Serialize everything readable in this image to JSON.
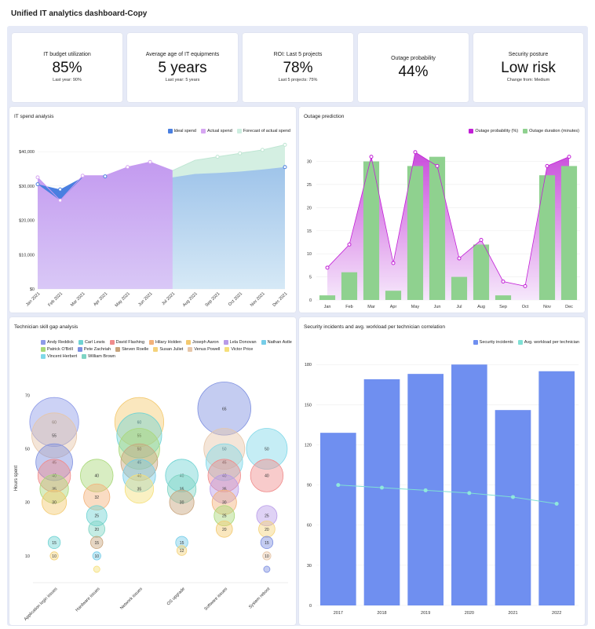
{
  "page_title": "Unified IT analytics dashboard-Copy",
  "kpis": [
    {
      "title": "IT budget utilization",
      "value": "85%",
      "sub": "Last year: 90%"
    },
    {
      "title": "Average age of IT equipments",
      "value": "5 years",
      "sub": "Last year: 5 years"
    },
    {
      "title": "ROI: Last 5 projects",
      "value": "78%",
      "sub": "Last 5 projects: 75%"
    },
    {
      "title": "Outage probability",
      "value": "44%",
      "sub": ""
    },
    {
      "title": "Security posture",
      "value": "Low risk",
      "sub": "Change from: Medium"
    }
  ],
  "spend": {
    "title": "IT spend analysis",
    "legend": [
      {
        "label": "Ideal spend",
        "color": "#4a7fe0"
      },
      {
        "label": "Actual spend",
        "color": "#d6a6f2"
      },
      {
        "label": "Forecast of actual spend",
        "color": "#cdeee0"
      }
    ]
  },
  "outage": {
    "title": "Outage prediction",
    "legend": [
      {
        "label": "Outage probability (%)",
        "color": "#c21fd6"
      },
      {
        "label": "Outage duration (minutes)",
        "color": "#8fd18f"
      }
    ]
  },
  "skills": {
    "title": "Technician skill gap analysis",
    "legend": [
      {
        "label": "Andy Reddick",
        "color": "#8e9be8"
      },
      {
        "label": "Carl Lewis",
        "color": "#6fd3d3"
      },
      {
        "label": "David Flashing",
        "color": "#f08c8c"
      },
      {
        "label": "Hilary Holden",
        "color": "#f3b27a"
      },
      {
        "label": "Joseph Aaron",
        "color": "#f3c96f"
      },
      {
        "label": "Lela Donovan",
        "color": "#b89be8"
      },
      {
        "label": "Nathan Astle",
        "color": "#76cde8"
      },
      {
        "label": "Patrick O'Brill",
        "color": "#a8d878"
      },
      {
        "label": "Pete Zachriah",
        "color": "#7d8fe0"
      },
      {
        "label": "Steven Roelle",
        "color": "#c8a47c"
      },
      {
        "label": "Susan Juliet",
        "color": "#f4d27a"
      },
      {
        "label": "Venus Powell",
        "color": "#e6c6a8"
      },
      {
        "label": "Victor Price",
        "color": "#f5df7a"
      },
      {
        "label": "Vincent Herbert",
        "color": "#7fd8e8"
      },
      {
        "label": "William Brown",
        "color": "#7ed4c4"
      }
    ]
  },
  "security": {
    "title": "Security incidents and avg. workload per technician correlation",
    "legend": [
      {
        "label": "Security incidents",
        "color": "#6f8ff0"
      },
      {
        "label": "Avg. workload per technician",
        "color": "#7fe0d4"
      }
    ]
  },
  "chart_data": [
    {
      "type": "area",
      "title": "IT spend analysis",
      "categories": [
        "Jan 2021",
        "Feb 2021",
        "Mar 2021",
        "Apr 2021",
        "May 2021",
        "Jun 2021",
        "Jul 2021",
        "Aug 2021",
        "Sep 2021",
        "Oct 2021",
        "Nov 2021",
        "Dec 2021"
      ],
      "y_ticks": [
        "$0",
        "$10,000",
        "$20,000",
        "$30,000",
        "$40,000"
      ],
      "ylim": [
        0,
        43000
      ],
      "series": [
        {
          "name": "Ideal spend",
          "values": [
            30500,
            29000,
            32500,
            32800,
            33300,
            33500,
            32500,
            33500,
            33800,
            34200,
            34800,
            35500
          ]
        },
        {
          "name": "Actual spend",
          "values": [
            32500,
            25800,
            33000,
            33000,
            35500,
            37000,
            34500,
            null,
            null,
            null,
            null,
            null
          ]
        },
        {
          "name": "Forecast of actual spend",
          "values": [
            null,
            null,
            null,
            null,
            null,
            null,
            34500,
            37500,
            38500,
            39500,
            40500,
            42000
          ]
        }
      ]
    },
    {
      "type": "bar",
      "title": "Outage prediction",
      "categories": [
        "Jan",
        "Feb",
        "Mar",
        "Apr",
        "May",
        "Jun",
        "Jul",
        "Aug",
        "Sep",
        "Oct",
        "Nov",
        "Dec"
      ],
      "y_ticks": [
        "0",
        "5",
        "10",
        "15",
        "20",
        "25",
        "30"
      ],
      "ylim": [
        0,
        34
      ],
      "series": [
        {
          "name": "Outage probability (%)",
          "values": [
            7,
            12,
            31,
            8,
            32,
            29,
            9,
            13,
            4,
            3,
            29,
            31
          ]
        },
        {
          "name": "Outage duration (minutes)",
          "values": [
            1,
            6,
            30,
            2,
            29,
            31,
            5,
            12,
            1,
            0,
            27,
            29
          ]
        }
      ]
    },
    {
      "type": "scatter",
      "title": "Technician skill gap analysis",
      "ylabel": "Hours spent",
      "categories": [
        "Application login issues",
        "Hardware issues",
        "Network issues",
        "OS upgrade",
        "Software issues",
        "System reboot"
      ],
      "y_ticks": [
        "10",
        "30",
        "50",
        "70"
      ],
      "ylim": [
        0,
        78
      ],
      "bubbles": [
        {
          "cat": 0,
          "value": 60,
          "color": "#8e9be8"
        },
        {
          "cat": 0,
          "value": 55,
          "color": "#e6c6a8"
        },
        {
          "cat": 0,
          "value": 45,
          "color": "#7d8fe0"
        },
        {
          "cat": 0,
          "value": 40,
          "color": "#f08c8c"
        },
        {
          "cat": 0,
          "value": 35,
          "color": "#a8d878"
        },
        {
          "cat": 0,
          "value": 30,
          "color": "#f3c96f"
        },
        {
          "cat": 0,
          "value": 15,
          "color": "#6fd3d3"
        },
        {
          "cat": 0,
          "value": 10,
          "color": "#f4d27a"
        },
        {
          "cat": 1,
          "value": 40,
          "color": "#a8d878"
        },
        {
          "cat": 1,
          "value": 32,
          "color": "#f3b27a"
        },
        {
          "cat": 1,
          "value": 25,
          "color": "#6fd3d3"
        },
        {
          "cat": 1,
          "value": 20,
          "color": "#7ed4c4"
        },
        {
          "cat": 1,
          "value": 15,
          "color": "#c8a47c"
        },
        {
          "cat": 1,
          "value": 10,
          "color": "#76cde8"
        },
        {
          "cat": 1,
          "value": 5,
          "color": "#f5df7a"
        },
        {
          "cat": 2,
          "value": 60,
          "color": "#f3c96f"
        },
        {
          "cat": 2,
          "value": 55,
          "color": "#6fd3d3"
        },
        {
          "cat": 2,
          "value": 50,
          "color": "#a8d878"
        },
        {
          "cat": 2,
          "value": 45,
          "color": "#c8a47c"
        },
        {
          "cat": 2,
          "value": 40,
          "color": "#76cde8"
        },
        {
          "cat": 2,
          "value": 35,
          "color": "#f5df7a"
        },
        {
          "cat": 3,
          "value": 40,
          "color": "#6fd3d3"
        },
        {
          "cat": 3,
          "value": 35,
          "color": "#7ed4c4"
        },
        {
          "cat": 3,
          "value": 30,
          "color": "#c8a47c"
        },
        {
          "cat": 3,
          "value": 15,
          "color": "#76cde8"
        },
        {
          "cat": 3,
          "value": 12,
          "color": "#f4d27a"
        },
        {
          "cat": 4,
          "value": 65,
          "color": "#7d8fe0"
        },
        {
          "cat": 4,
          "value": 50,
          "color": "#e6c6a8"
        },
        {
          "cat": 4,
          "value": 45,
          "color": "#7fd8e8"
        },
        {
          "cat": 4,
          "value": 40,
          "color": "#f08c8c"
        },
        {
          "cat": 4,
          "value": 35,
          "color": "#b89be8"
        },
        {
          "cat": 4,
          "value": 30,
          "color": "#f3b27a"
        },
        {
          "cat": 4,
          "value": 25,
          "color": "#a8d878"
        },
        {
          "cat": 4,
          "value": 20,
          "color": "#f3c96f"
        },
        {
          "cat": 5,
          "value": 50,
          "color": "#7fd8e8"
        },
        {
          "cat": 5,
          "value": 40,
          "color": "#f08c8c"
        },
        {
          "cat": 5,
          "value": 25,
          "color": "#b89be8"
        },
        {
          "cat": 5,
          "value": 20,
          "color": "#f4d27a"
        },
        {
          "cat": 5,
          "value": 15,
          "color": "#7d8fe0"
        },
        {
          "cat": 5,
          "value": 10,
          "color": "#e6c6a8"
        },
        {
          "cat": 5,
          "value": 5,
          "color": "#7d8fe0"
        }
      ]
    },
    {
      "type": "bar",
      "title": "Security incidents and avg. workload per technician correlation",
      "categories": [
        "2017",
        "2018",
        "2019",
        "2020",
        "2021",
        "2022"
      ],
      "y_ticks": [
        "0",
        "30",
        "60",
        "90",
        "120",
        "150",
        "180"
      ],
      "ylim": [
        0,
        186
      ],
      "series": [
        {
          "name": "Security incidents",
          "values": [
            129,
            169,
            173,
            180,
            146,
            175
          ]
        },
        {
          "name": "Avg. workload per technician",
          "values": [
            90,
            88,
            86,
            84,
            81,
            76
          ]
        }
      ]
    }
  ]
}
